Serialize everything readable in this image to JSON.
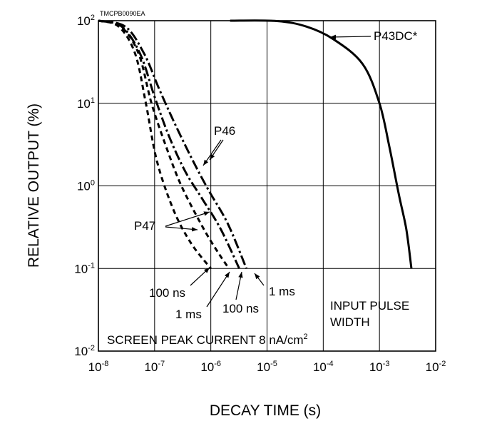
{
  "figure_code": "TMCPB0090EA",
  "chart_data": {
    "type": "line",
    "xlabel": "DECAY TIME (s)",
    "ylabel": "RELATIVE OUTPUT (%)",
    "xscale": "log",
    "yscale": "log",
    "xlim": [
      1e-08,
      0.01
    ],
    "ylim": [
      0.01,
      100
    ],
    "grid": true,
    "x_ticks": [
      {
        "base": "10",
        "exp": "-8",
        "value": 1e-08
      },
      {
        "base": "10",
        "exp": "-7",
        "value": 1e-07
      },
      {
        "base": "10",
        "exp": "-6",
        "value": 1e-06
      },
      {
        "base": "10",
        "exp": "-5",
        "value": 1e-05
      },
      {
        "base": "10",
        "exp": "-4",
        "value": 0.0001
      },
      {
        "base": "10",
        "exp": "-3",
        "value": 0.001
      },
      {
        "base": "10",
        "exp": "-2",
        "value": 0.01
      }
    ],
    "y_ticks": [
      {
        "base": "10",
        "exp": "2",
        "value": 100
      },
      {
        "base": "10",
        "exp": "1",
        "value": 10
      },
      {
        "base": "10",
        "exp": "0",
        "value": 1
      },
      {
        "base": "10",
        "exp": "-1",
        "value": 0.1
      },
      {
        "base": "10",
        "exp": "-2",
        "value": 0.01
      }
    ],
    "series": [
      {
        "id": "p47-100ns",
        "dash": "dash",
        "points": [
          [
            1e-08,
            100
          ],
          [
            2.3e-08,
            85
          ],
          [
            4.5e-08,
            40
          ],
          [
            7e-08,
            10
          ],
          [
            1.1e-07,
            2
          ],
          [
            2.2e-07,
            0.5
          ],
          [
            4.5e-07,
            0.2
          ],
          [
            1e-06,
            0.1
          ]
        ]
      },
      {
        "id": "p47-1ms",
        "dash": "dash",
        "points": [
          [
            1e-08,
            100
          ],
          [
            2.5e-08,
            85
          ],
          [
            5.2e-08,
            40
          ],
          [
            8.8e-08,
            10
          ],
          [
            1.6e-07,
            3
          ],
          [
            3e-07,
            1
          ],
          [
            7.5e-07,
            0.3
          ],
          [
            1.4e-06,
            0.15
          ],
          [
            2.1e-06,
            0.1
          ]
        ]
      },
      {
        "id": "p46-100ns",
        "dash": "dashdot",
        "points": [
          [
            1e-08,
            100
          ],
          [
            2.6e-08,
            85
          ],
          [
            5.5e-08,
            40
          ],
          [
            1e-07,
            12
          ],
          [
            1.8e-07,
            4
          ],
          [
            3.5e-07,
            1.5
          ],
          [
            7e-07,
            0.7
          ],
          [
            1.5e-06,
            0.3
          ],
          [
            3.2e-06,
            0.1
          ]
        ]
      },
      {
        "id": "p46-1ms",
        "dash": "dashdot",
        "points": [
          [
            1e-08,
            100
          ],
          [
            3e-08,
            85
          ],
          [
            6.5e-08,
            40
          ],
          [
            1.2e-07,
            15
          ],
          [
            2.2e-07,
            6
          ],
          [
            4.5e-07,
            2.2
          ],
          [
            9e-07,
            0.9
          ],
          [
            2e-06,
            0.35
          ],
          [
            4.3e-06,
            0.1
          ]
        ]
      },
      {
        "id": "p43dc",
        "dash": "solid",
        "points": [
          [
            2.2e-06,
            100
          ],
          [
            1.5e-05,
            99
          ],
          [
            5e-05,
            85
          ],
          [
            0.00015,
            60
          ],
          [
            0.0005,
            30
          ],
          [
            0.001,
            10
          ],
          [
            0.0015,
            3
          ],
          [
            0.0022,
            0.8
          ],
          [
            0.003,
            0.3
          ],
          [
            0.0037,
            0.1
          ]
        ]
      }
    ],
    "annotations": {
      "p43dc": "P43DC*",
      "p46": "P46",
      "p47": "P47",
      "p47_100ns": "100 ns",
      "p47_1ms": "1 ms",
      "p46_100ns": "100 ns",
      "p46_1ms": "1 ms",
      "input_pulse": "INPUT PULSE",
      "width": "WIDTH",
      "screen_current_main": "SCREEN PEAK CURRENT 8 nA/cm",
      "screen_current_sup": "2"
    }
  }
}
